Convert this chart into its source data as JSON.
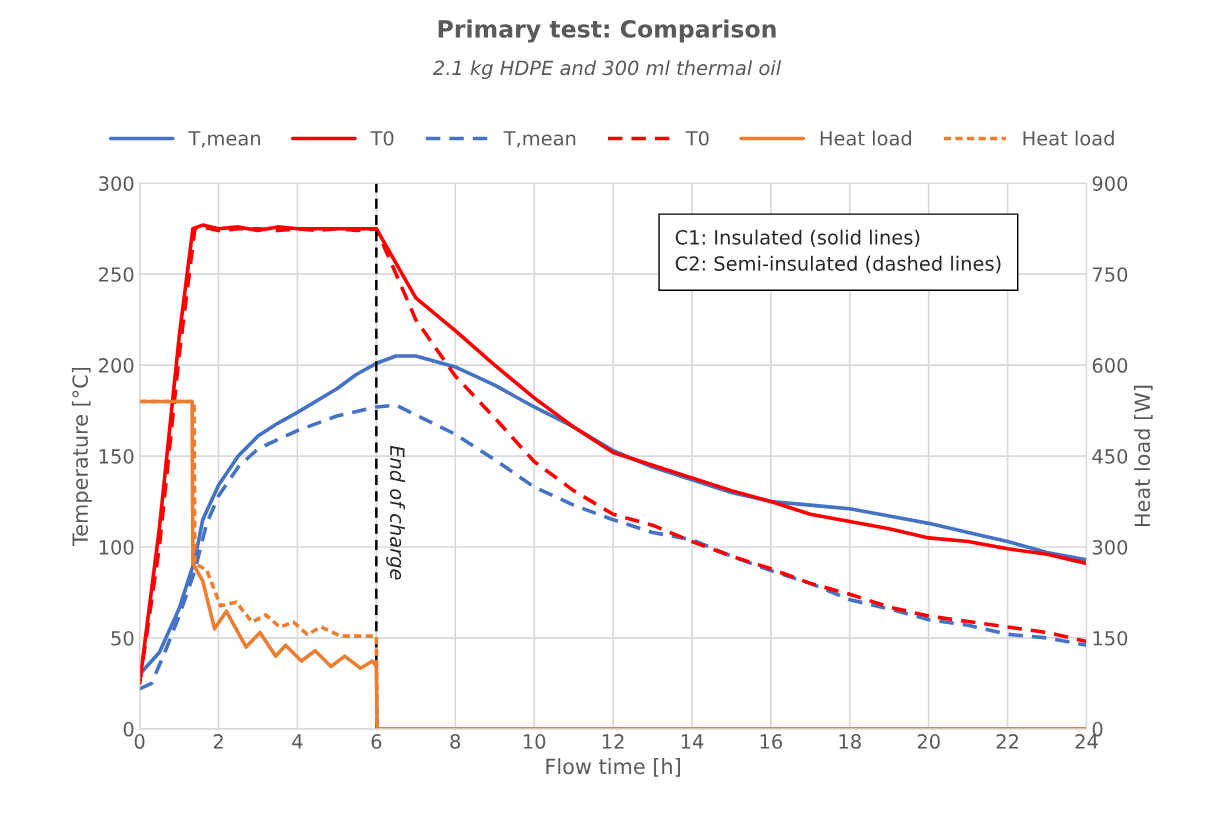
{
  "chart_data": {
    "type": "line",
    "title": "Primary test: Comparison",
    "subtitle": "2.1 kg HDPE and 300 ml thermal oil",
    "xlabel": "Flow time [h]",
    "ylabel": "Temperature [°C]",
    "y2label": "Heat load [W]",
    "xlim": [
      0,
      24
    ],
    "xticks": [
      0,
      2,
      4,
      6,
      8,
      10,
      12,
      14,
      16,
      18,
      20,
      22,
      24
    ],
    "ylim": [
      0,
      300
    ],
    "yticks": [
      0,
      50,
      100,
      150,
      200,
      250,
      300
    ],
    "y2lim": [
      0,
      900
    ],
    "y2ticks": [
      0,
      150,
      300,
      450,
      600,
      750,
      900
    ],
    "grid": true,
    "legend": "top",
    "annotations": [
      "C1: Insulated (solid lines)",
      "C2: Semi-insulated (dashed lines)"
    ],
    "ref_lines": [
      {
        "axis": "x",
        "value": 6,
        "label": "End of charge",
        "color": "#000000",
        "line_style": "dashed"
      }
    ],
    "series": [
      {
        "name": "T,mean",
        "color": "#4472c4",
        "line_style": "solid",
        "x": [
          0,
          0.5,
          1,
          1.4,
          1.6,
          2,
          2.5,
          3,
          3.5,
          4,
          5,
          5.5,
          6,
          6.5,
          7,
          8,
          9,
          10,
          11,
          12,
          13,
          14,
          15,
          16,
          17,
          18,
          19,
          20,
          21,
          22,
          23,
          24
        ],
        "values": [
          30,
          42,
          66,
          93,
          115,
          134,
          150,
          161,
          168,
          174,
          187,
          195,
          201,
          205,
          205,
          199,
          189,
          177,
          166,
          153,
          144,
          137,
          130,
          125,
          123,
          121,
          117,
          113,
          108,
          103,
          97,
          93
        ]
      },
      {
        "name": "T0",
        "color": "#ff0000",
        "line_style": "solid",
        "x": [
          0,
          0.5,
          1,
          1.35,
          1.6,
          2,
          2.5,
          3,
          3.5,
          4,
          4.5,
          5,
          5.5,
          6,
          7,
          8,
          9,
          10,
          11,
          12,
          13,
          14,
          15,
          16,
          17,
          18,
          19,
          20,
          21,
          22,
          23,
          24
        ],
        "values": [
          25,
          110,
          215,
          275,
          277,
          275,
          276,
          274,
          276,
          275,
          275,
          275,
          275,
          275,
          237,
          219,
          200,
          182,
          166,
          152,
          145,
          138,
          131,
          125,
          118,
          114,
          110,
          105,
          103,
          99,
          96,
          91
        ]
      },
      {
        "name": "T,mean",
        "color": "#4472c4",
        "line_style": "dashed",
        "x": [
          0,
          0.3,
          0.6,
          1,
          1.4,
          1.7,
          2,
          2.5,
          3,
          4,
          5,
          6,
          6.5,
          8,
          9,
          10,
          11,
          12,
          13,
          14,
          15,
          16,
          17,
          18,
          19,
          20,
          21,
          22,
          23,
          24
        ],
        "values": [
          22,
          25,
          40,
          62,
          87,
          113,
          128,
          144,
          154,
          164,
          172,
          177,
          178,
          162,
          148,
          133,
          123,
          115,
          108,
          104,
          95,
          87,
          80,
          71,
          66,
          60,
          57,
          52,
          50,
          46
        ]
      },
      {
        "name": "T0",
        "color": "#ff0000",
        "line_style": "dashed",
        "x": [
          0,
          0.5,
          1,
          1.4,
          1.6,
          2,
          2.5,
          3,
          3.5,
          4,
          4.5,
          5,
          5.5,
          6,
          7,
          8,
          9,
          10,
          11,
          12,
          13,
          14,
          15,
          16,
          17,
          18,
          19,
          20,
          21,
          22,
          23,
          24
        ],
        "values": [
          25,
          100,
          205,
          275,
          276,
          274,
          275,
          275,
          274,
          275,
          274,
          275,
          274,
          275,
          225,
          194,
          171,
          147,
          131,
          118,
          112,
          103,
          95,
          88,
          80,
          74,
          67,
          62,
          59,
          56,
          53,
          48
        ]
      },
      {
        "name": "Heat load",
        "color": "#ed7d31",
        "line_style": "solid",
        "axis": "y2",
        "x": [
          0,
          1.33,
          1.35,
          1.6,
          1.9,
          2.2,
          2.7,
          3.05,
          3.45,
          3.7,
          4.1,
          4.45,
          4.85,
          5.2,
          5.6,
          5.9,
          6,
          6.02,
          24
        ],
        "values": [
          540,
          540,
          273,
          244,
          165,
          194,
          135,
          159,
          120,
          138,
          112,
          129,
          103,
          120,
          100,
          112,
          103,
          0,
          0
        ]
      },
      {
        "name": "Heat load",
        "color": "#ed7d31",
        "line_style": "dotted",
        "axis": "y2",
        "x": [
          0,
          1.38,
          1.4,
          1.7,
          2.05,
          2.45,
          2.85,
          3.2,
          3.55,
          3.9,
          4.25,
          4.6,
          5.1,
          6,
          6.02,
          24
        ],
        "values": [
          540,
          540,
          273,
          262,
          203,
          209,
          176,
          188,
          168,
          176,
          156,
          168,
          153,
          153,
          0,
          0
        ]
      }
    ]
  }
}
